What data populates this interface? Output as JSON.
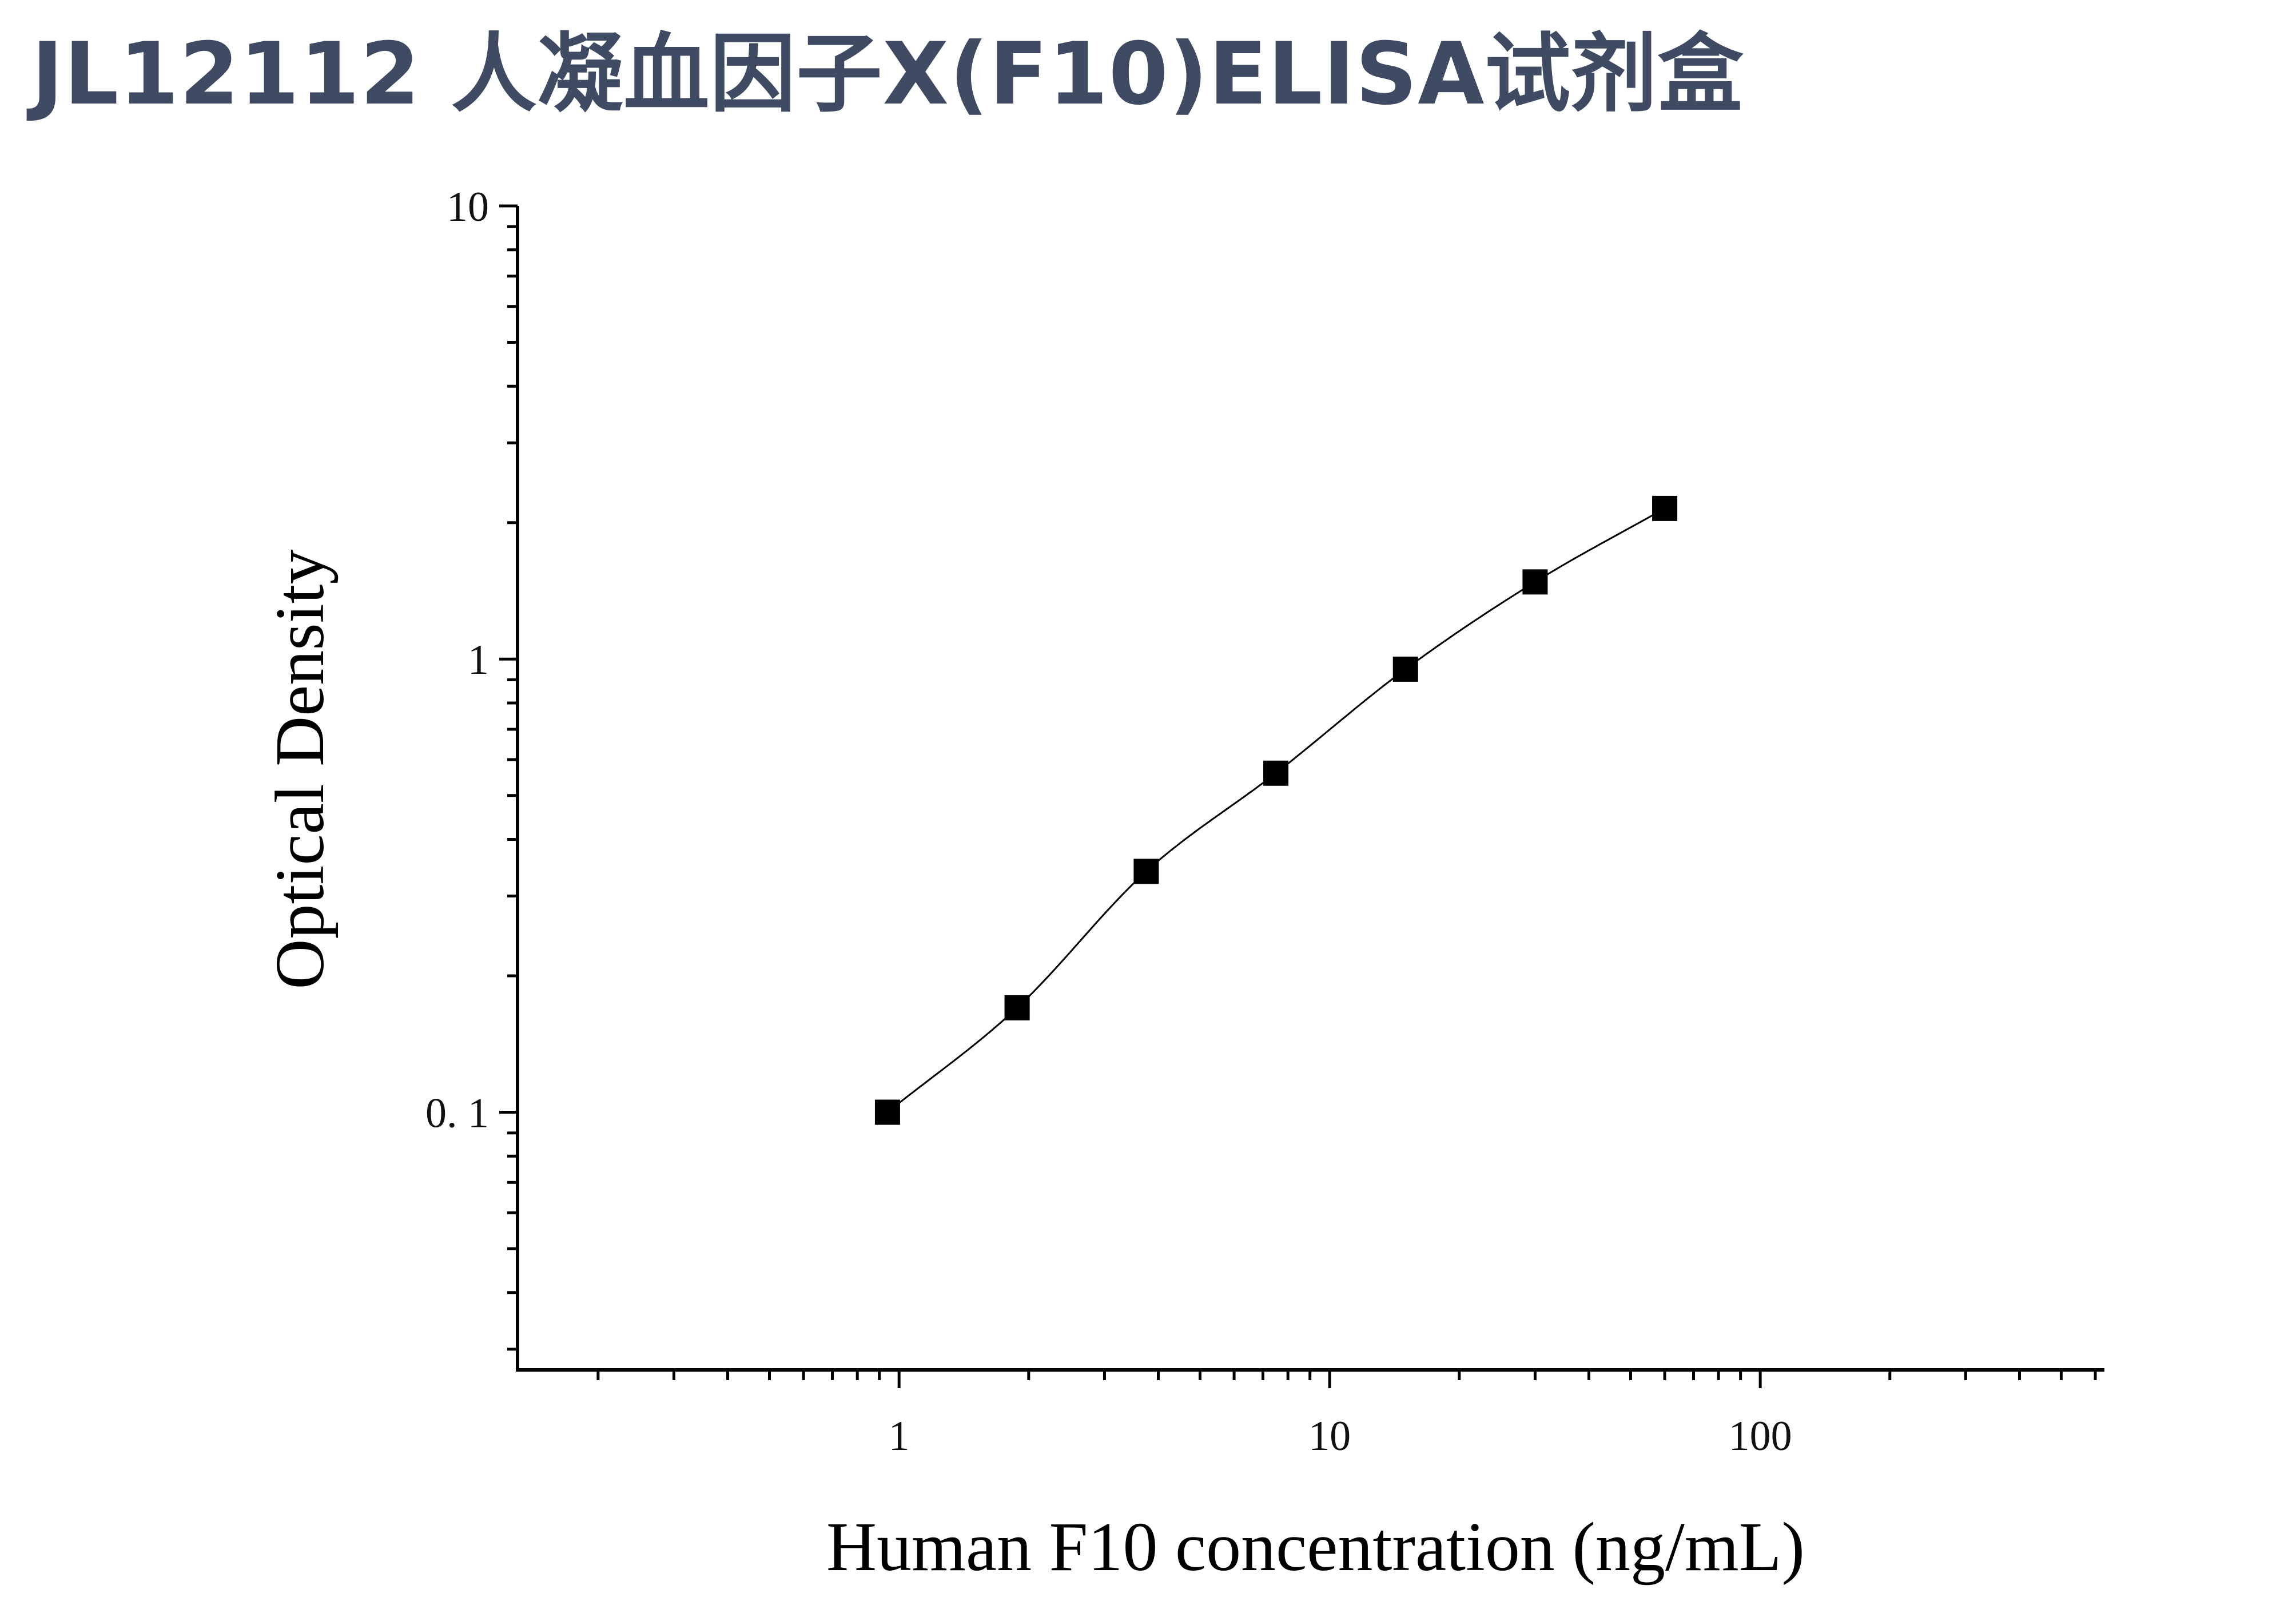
{
  "title": "JL12112 人凝血因子X(F10)ELISA试剂盒",
  "colors": {
    "title": "#3f4a63",
    "axis": "#000000",
    "marker": "#000000",
    "curve": "#000000"
  },
  "chart_data": {
    "type": "scatter",
    "title": "JL12112 人凝血因子X(F10)ELISA试剂盒",
    "xlabel": "Human F10 concentration (ng/mL)",
    "ylabel": "Optical Density",
    "xscale": "log",
    "yscale": "log",
    "xlim": [
      0.13,
      630
    ],
    "ylim": [
      0.027,
      10
    ],
    "x_ticks": [
      {
        "value": 1,
        "label": "1"
      },
      {
        "value": 10,
        "label": "10"
      },
      {
        "value": 100,
        "label": "100"
      }
    ],
    "y_ticks": [
      {
        "value": 0.1,
        "label": "0. 1"
      },
      {
        "value": 1,
        "label": "1"
      },
      {
        "value": 10,
        "label": "10"
      }
    ],
    "grid": false,
    "legend": "none",
    "marker": "square",
    "fit_curve": true,
    "series": [
      {
        "x": [
          0.94,
          1.88,
          3.75,
          7.5,
          15,
          30,
          60
        ],
        "y": [
          0.1,
          0.17,
          0.34,
          0.56,
          0.95,
          1.48,
          2.15
        ]
      }
    ]
  }
}
